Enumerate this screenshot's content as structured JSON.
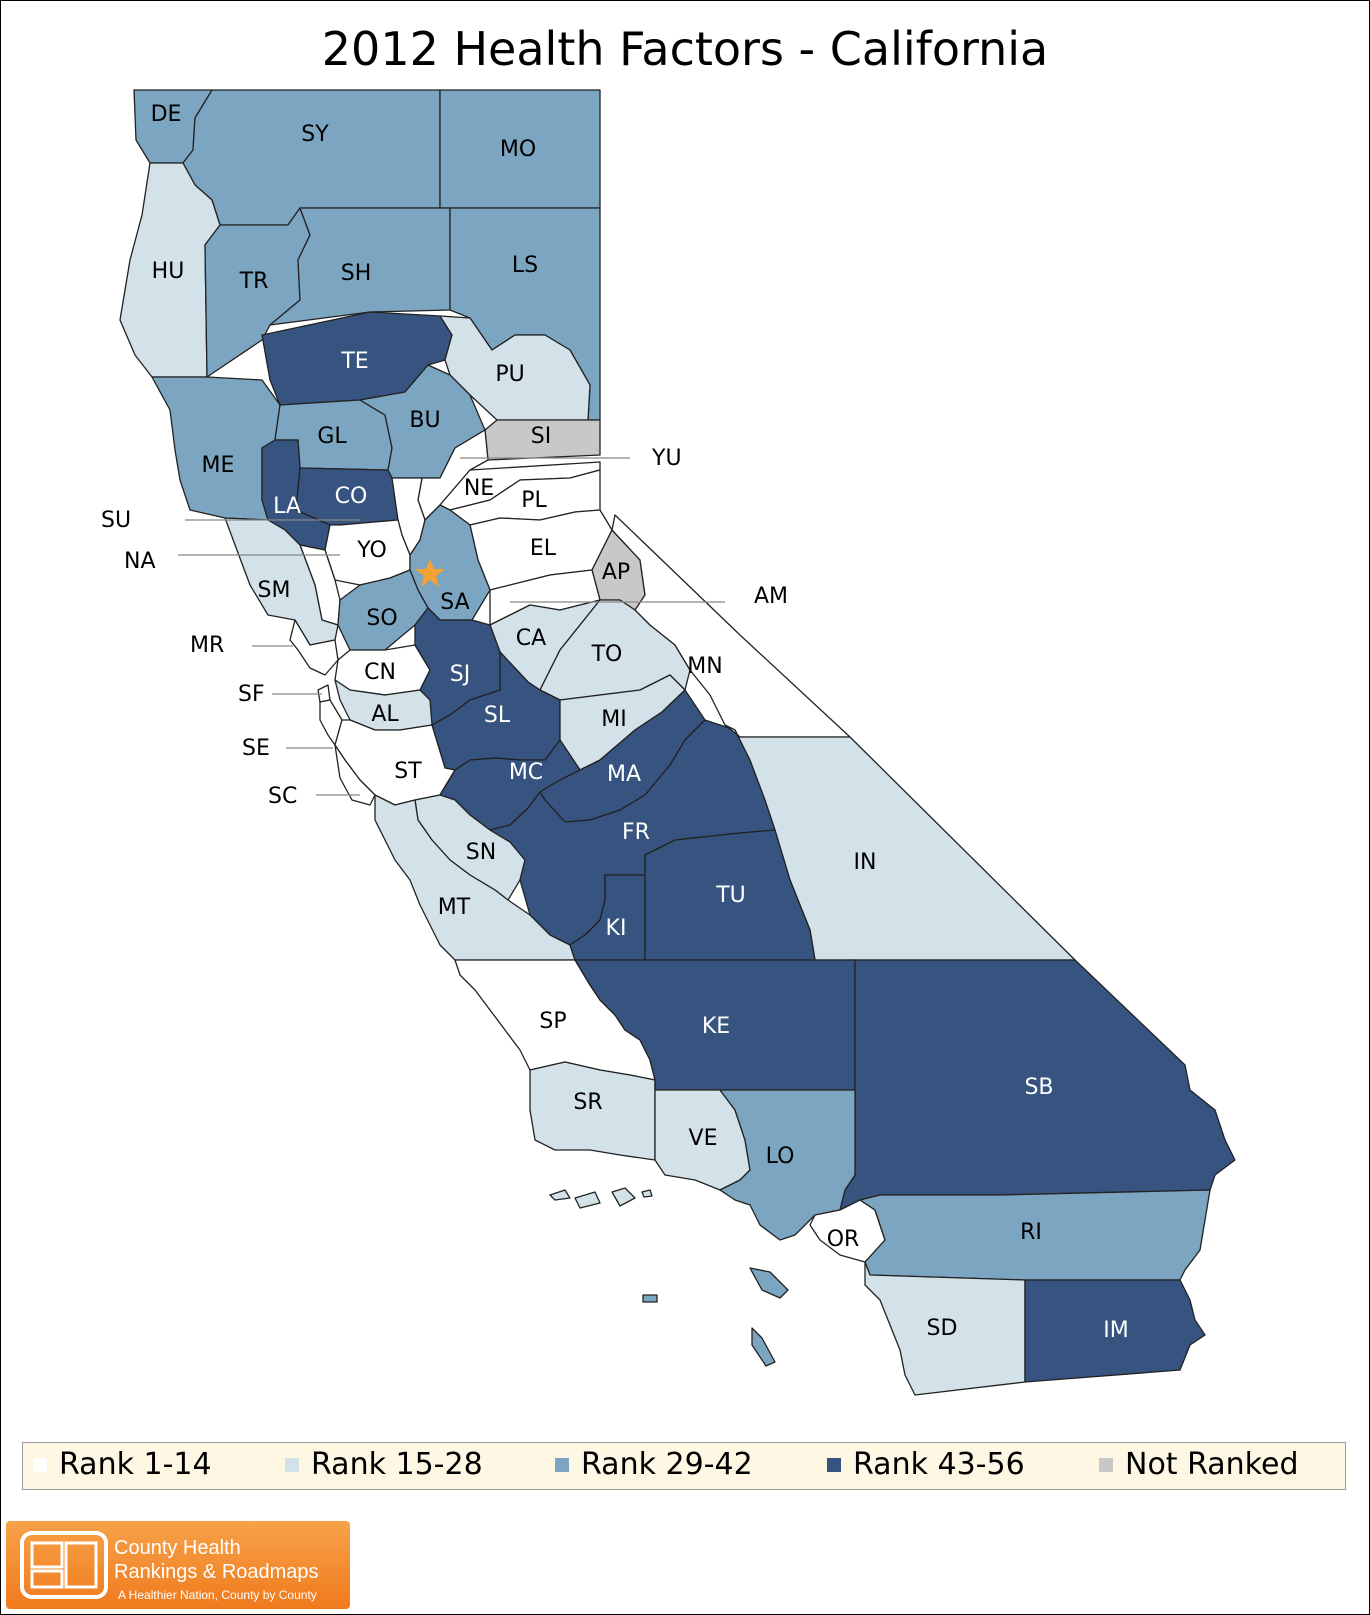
{
  "title": "2012 Health Factors - California",
  "colors": {
    "rank_1_14": "#ffffff",
    "rank_15_28": "#d3e1e9",
    "rank_29_42": "#7ca5c1",
    "rank_43_56": "#36547f",
    "not_ranked": "#c8c8c8",
    "border": "#222222",
    "capital_star": "#f4a233"
  },
  "legend": [
    {
      "label": "Rank 1-14",
      "class": "rank_1_14"
    },
    {
      "label": "Rank 15-28",
      "class": "rank_15_28"
    },
    {
      "label": "Rank 29-42",
      "class": "rank_29_42"
    },
    {
      "label": "Rank 43-56",
      "class": "rank_43_56"
    },
    {
      "label": "Not Ranked",
      "class": "not_ranked"
    }
  ],
  "counties": [
    {
      "code": "DE",
      "class": "rank_29_42"
    },
    {
      "code": "SY",
      "class": "rank_29_42"
    },
    {
      "code": "MO",
      "class": "rank_29_42"
    },
    {
      "code": "HU",
      "class": "rank_15_28"
    },
    {
      "code": "TR",
      "class": "rank_29_42"
    },
    {
      "code": "SH",
      "class": "rank_29_42"
    },
    {
      "code": "LS",
      "class": "rank_29_42"
    },
    {
      "code": "TE",
      "class": "rank_43_56"
    },
    {
      "code": "PU",
      "class": "rank_15_28"
    },
    {
      "code": "ME",
      "class": "rank_29_42"
    },
    {
      "code": "GL",
      "class": "rank_29_42"
    },
    {
      "code": "BU",
      "class": "rank_29_42"
    },
    {
      "code": "SI",
      "class": "not_ranked"
    },
    {
      "code": "LA",
      "class": "rank_43_56"
    },
    {
      "code": "CO",
      "class": "rank_43_56"
    },
    {
      "code": "NE",
      "class": "rank_1_14"
    },
    {
      "code": "PL",
      "class": "rank_1_14"
    },
    {
      "code": "EL",
      "class": "rank_1_14"
    },
    {
      "code": "YO",
      "class": "rank_1_14"
    },
    {
      "code": "AP",
      "class": "not_ranked"
    },
    {
      "code": "SM",
      "class": "rank_15_28"
    },
    {
      "code": "SA",
      "class": "rank_29_42"
    },
    {
      "code": "SO",
      "class": "rank_29_42"
    },
    {
      "code": "CA",
      "class": "rank_15_28"
    },
    {
      "code": "TO",
      "class": "rank_15_28"
    },
    {
      "code": "CN",
      "class": "rank_1_14"
    },
    {
      "code": "SJ",
      "class": "rank_43_56"
    },
    {
      "code": "AL",
      "class": "rank_15_28"
    },
    {
      "code": "SL",
      "class": "rank_43_56"
    },
    {
      "code": "MI",
      "class": "rank_15_28"
    },
    {
      "code": "MC",
      "class": "rank_43_56"
    },
    {
      "code": "MA",
      "class": "rank_43_56"
    },
    {
      "code": "ST",
      "class": "rank_1_14"
    },
    {
      "code": "FR",
      "class": "rank_43_56"
    },
    {
      "code": "IN",
      "class": "rank_15_28"
    },
    {
      "code": "SN",
      "class": "rank_15_28"
    },
    {
      "code": "MT",
      "class": "rank_15_28"
    },
    {
      "code": "TU",
      "class": "rank_43_56"
    },
    {
      "code": "KI",
      "class": "rank_43_56"
    },
    {
      "code": "SP",
      "class": "rank_1_14"
    },
    {
      "code": "KE",
      "class": "rank_43_56"
    },
    {
      "code": "SB",
      "class": "rank_43_56"
    },
    {
      "code": "SR",
      "class": "rank_15_28"
    },
    {
      "code": "VE",
      "class": "rank_15_28"
    },
    {
      "code": "LO",
      "class": "rank_29_42"
    },
    {
      "code": "OR",
      "class": "rank_1_14"
    },
    {
      "code": "RI",
      "class": "rank_29_42"
    },
    {
      "code": "SD",
      "class": "rank_15_28"
    },
    {
      "code": "IM",
      "class": "rank_43_56"
    },
    {
      "code": "MN",
      "class": "rank_1_14"
    }
  ],
  "external_labels": [
    "YU",
    "SU",
    "NA",
    "AM",
    "MR",
    "SF",
    "SE",
    "SC"
  ],
  "logo": {
    "line1": "County Health",
    "line2": "Rankings & Roadmaps",
    "tagline": "A Healthier Nation, County by County"
  }
}
